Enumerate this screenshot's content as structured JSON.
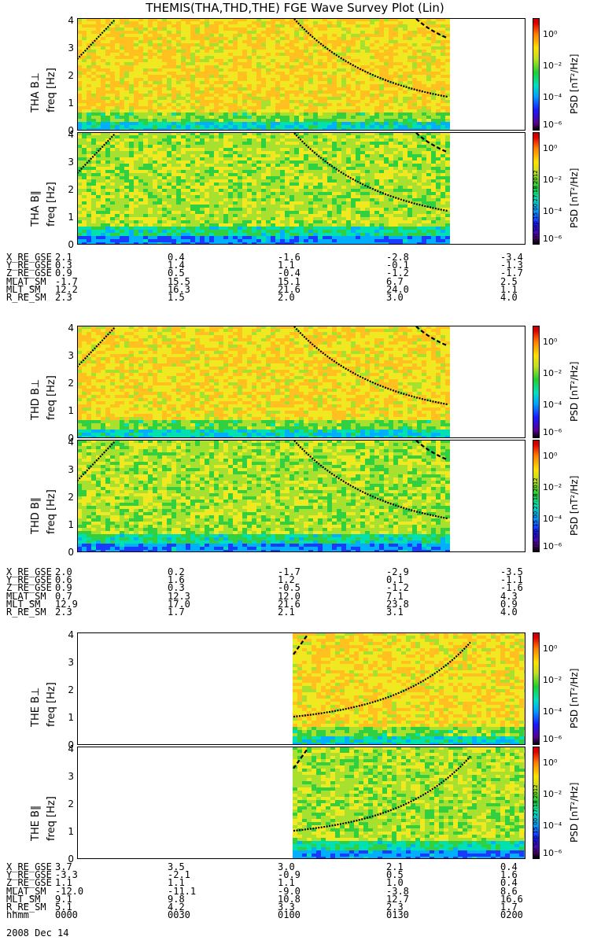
{
  "title": "THEMIS(THA,THD,THE) FGE Wave Survey Plot (Lin)",
  "colors": {
    "background": "#ffffff",
    "curve": "#000000"
  },
  "colorbar": {
    "label": "PSD [nT²/Hz]",
    "ticks": [
      "10⁰",
      "10⁻²",
      "10⁻⁴",
      "10⁻⁶"
    ],
    "stamp": "Sat Sep 15 00:27:18 2012"
  },
  "chart_data": [
    {
      "type": "heatmap",
      "probe": "THA",
      "component": "B⊥",
      "ylabel": "THA B⊥",
      "yunit": "freq [Hz]",
      "yticks": [
        "0",
        "1",
        "2",
        "3",
        "4"
      ],
      "ylim": [
        0,
        4.1
      ],
      "data_coverage_fraction": [
        0,
        0.83
      ]
    },
    {
      "type": "heatmap",
      "probe": "THA",
      "component": "B∥",
      "ylabel": "THA B∥",
      "yunit": "freq [Hz]",
      "yticks": [
        "0",
        "1",
        "2",
        "3",
        "4"
      ],
      "ylim": [
        0,
        4.1
      ],
      "data_coverage_fraction": [
        0,
        0.83
      ]
    },
    {
      "type": "heatmap",
      "probe": "THD",
      "component": "B⊥",
      "ylabel": "THD B⊥",
      "yunit": "freq [Hz]",
      "yticks": [
        "0",
        "1",
        "2",
        "3",
        "4"
      ],
      "ylim": [
        0,
        4.1
      ],
      "data_coverage_fraction": [
        0,
        0.83
      ]
    },
    {
      "type": "heatmap",
      "probe": "THD",
      "component": "B∥",
      "ylabel": "THD B∥",
      "yunit": "freq [Hz]",
      "yticks": [
        "0",
        "1",
        "2",
        "3",
        "4"
      ],
      "ylim": [
        0,
        4.1
      ],
      "data_coverage_fraction": [
        0,
        0.83
      ]
    },
    {
      "type": "heatmap",
      "probe": "THE",
      "component": "B⊥",
      "ylabel": "THE B⊥",
      "yunit": "freq [Hz]",
      "yticks": [
        "0",
        "1",
        "2",
        "3",
        "4"
      ],
      "ylim": [
        0,
        4.1
      ],
      "data_coverage_fraction": [
        0.48,
        1
      ]
    },
    {
      "type": "heatmap",
      "probe": "THE",
      "component": "B∥",
      "ylabel": "THE B∥",
      "yunit": "freq [Hz]",
      "yticks": [
        "0",
        "1",
        "2",
        "3",
        "4"
      ],
      "ylim": [
        0,
        4.1
      ],
      "data_coverage_fraction": [
        0.48,
        1
      ]
    }
  ],
  "ephem": [
    {
      "rows": [
        {
          "label": "X_RE_GSE",
          "values": [
            "2.1",
            "0.4",
            "-1.6",
            "-2.8",
            "-3.4"
          ]
        },
        {
          "label": "Y_RE_GSE",
          "values": [
            "0.3",
            "1.4",
            "1.1",
            "-0.1",
            "-1.3"
          ]
        },
        {
          "label": "Z_RE_GSE",
          "values": [
            "0.9",
            "0.5",
            "-0.4",
            "-1.2",
            "-1.7"
          ]
        },
        {
          "label": "MLAT_SM",
          "values": [
            "-1.7",
            "15.5",
            "15.1",
            "6.7",
            "2.5"
          ]
        },
        {
          "label": "MLT_SM",
          "values": [
            "12.2",
            "16.3",
            "21.6",
            "24.0",
            "1.1"
          ]
        },
        {
          "label": "R_RE_SM",
          "values": [
            "2.3",
            "1.5",
            "2.0",
            "3.0",
            "4.0"
          ]
        }
      ]
    },
    {
      "rows": [
        {
          "label": "X_RE_GSE",
          "values": [
            "2.0",
            "0.2",
            "-1.7",
            "-2.9",
            "-3.5"
          ]
        },
        {
          "label": "Y_RE_GSE",
          "values": [
            "0.6",
            "1.6",
            "1.2",
            "0.1",
            "-1.1"
          ]
        },
        {
          "label": "Z_RE_GSE",
          "values": [
            "0.9",
            "0.3",
            "-0.5",
            "-1.2",
            "-1.6"
          ]
        },
        {
          "label": "MLAT_SM",
          "values": [
            "0.7",
            "12.3",
            "12.0",
            "7.1",
            "4.3"
          ]
        },
        {
          "label": "MLT_SM",
          "values": [
            "12.9",
            "17.0",
            "21.6",
            "23.8",
            "0.9"
          ]
        },
        {
          "label": "R_RE_SM",
          "values": [
            "2.3",
            "1.7",
            "2.1",
            "3.1",
            "4.0"
          ]
        }
      ]
    },
    {
      "rows": [
        {
          "label": "X_RE_GSE",
          "values": [
            "3.7",
            "3.5",
            "3.0",
            "2.1",
            "0.4"
          ]
        },
        {
          "label": "Y_RE_GSE",
          "values": [
            "-3.3",
            "-2.1",
            "-0.9",
            "0.5",
            "1.6"
          ]
        },
        {
          "label": "Z_RE_GSE",
          "values": [
            "1.1",
            "1.1",
            "1.1",
            "1.0",
            "0.4"
          ]
        },
        {
          "label": "MLAT_SM",
          "values": [
            "-12.0",
            "-11.1",
            "-9.0",
            "-3.8",
            "8.6"
          ]
        },
        {
          "label": "MLT_SM",
          "values": [
            "9.1",
            "9.8",
            "10.8",
            "12.7",
            "16.6"
          ]
        },
        {
          "label": "R_RE_SM",
          "values": [
            "5.1",
            "4.2",
            "3.3",
            "2.3",
            "1.7"
          ]
        },
        {
          "label": "hhmm",
          "values": [
            "0000",
            "0030",
            "0100",
            "0130",
            "0200"
          ]
        }
      ]
    }
  ],
  "date": "2008 Dec 14"
}
